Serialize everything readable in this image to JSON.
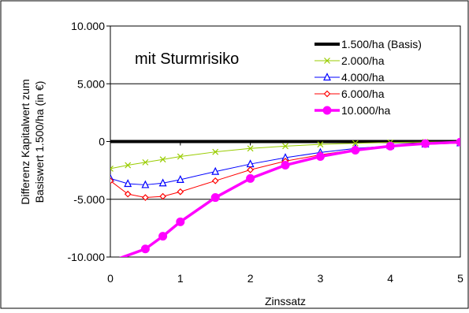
{
  "chart_data": {
    "type": "line",
    "title": "",
    "annotation": "mit Sturmrisiko",
    "xlabel": "Zinssatz",
    "ylabel": [
      "Differenz Kapitalwert zum",
      "Basiswert 1.500/ha (in €)"
    ],
    "xlim": [
      0,
      5
    ],
    "ylim": [
      -10000,
      10000
    ],
    "x_ticks": [
      0,
      1,
      2,
      3,
      4,
      5
    ],
    "x_tick_labels": [
      "0",
      "1",
      "2",
      "3",
      "4",
      "5"
    ],
    "y_ticks": [
      10000,
      5000,
      0,
      -5000,
      -10000
    ],
    "y_tick_labels": [
      "10.000",
      "5.000",
      "0",
      "-5.000",
      "-10.000"
    ],
    "grid": "horizontal-major",
    "legend_position": "top-right",
    "series": [
      {
        "name": "1.500/ha (Basis)",
        "color": "#000000",
        "marker": "none",
        "x": [
          0,
          0.25,
          0.5,
          0.75,
          1,
          1.5,
          2,
          2.5,
          3,
          3.5,
          4,
          4.5,
          5
        ],
        "y": [
          0,
          0,
          0,
          0,
          0,
          0,
          0,
          0,
          0,
          0,
          0,
          0,
          0
        ]
      },
      {
        "name": "2.000/ha",
        "color": "#99cc00",
        "marker": "x",
        "x": [
          0,
          0.25,
          0.5,
          0.75,
          1,
          1.5,
          2,
          2.5,
          3,
          3.5,
          4,
          4.5,
          5
        ],
        "y": [
          -2350,
          -2050,
          -1800,
          -1550,
          -1300,
          -900,
          -600,
          -400,
          -250,
          -150,
          -80,
          -40,
          -20
        ]
      },
      {
        "name": "4.000/ha",
        "color": "#0000ff",
        "marker": "triangle",
        "x": [
          0,
          0.25,
          0.5,
          0.75,
          1,
          1.5,
          2,
          2.5,
          3,
          3.5,
          4,
          4.5,
          5
        ],
        "y": [
          -3200,
          -3650,
          -3750,
          -3600,
          -3300,
          -2600,
          -1950,
          -1400,
          -950,
          -600,
          -380,
          -230,
          -130
        ]
      },
      {
        "name": "6.000/ha",
        "color": "#ff0000",
        "marker": "diamond",
        "x": [
          0,
          0.25,
          0.5,
          0.75,
          1,
          1.5,
          2,
          2.5,
          3,
          3.5,
          4,
          4.5,
          5
        ],
        "y": [
          -3400,
          -4550,
          -4850,
          -4750,
          -4350,
          -3400,
          -2450,
          -1700,
          -1150,
          -700,
          -420,
          -250,
          -140
        ]
      },
      {
        "name": "10.000/ha",
        "color": "#ff00ff",
        "marker": "circle",
        "x": [
          0,
          0.5,
          0.75,
          1,
          1.5,
          2,
          2.5,
          3,
          3.5,
          4,
          4.5,
          5
        ],
        "y": [
          -10400,
          -9300,
          -8200,
          -6950,
          -4850,
          -3200,
          -2050,
          -1300,
          -750,
          -400,
          -180,
          -50
        ]
      }
    ]
  }
}
